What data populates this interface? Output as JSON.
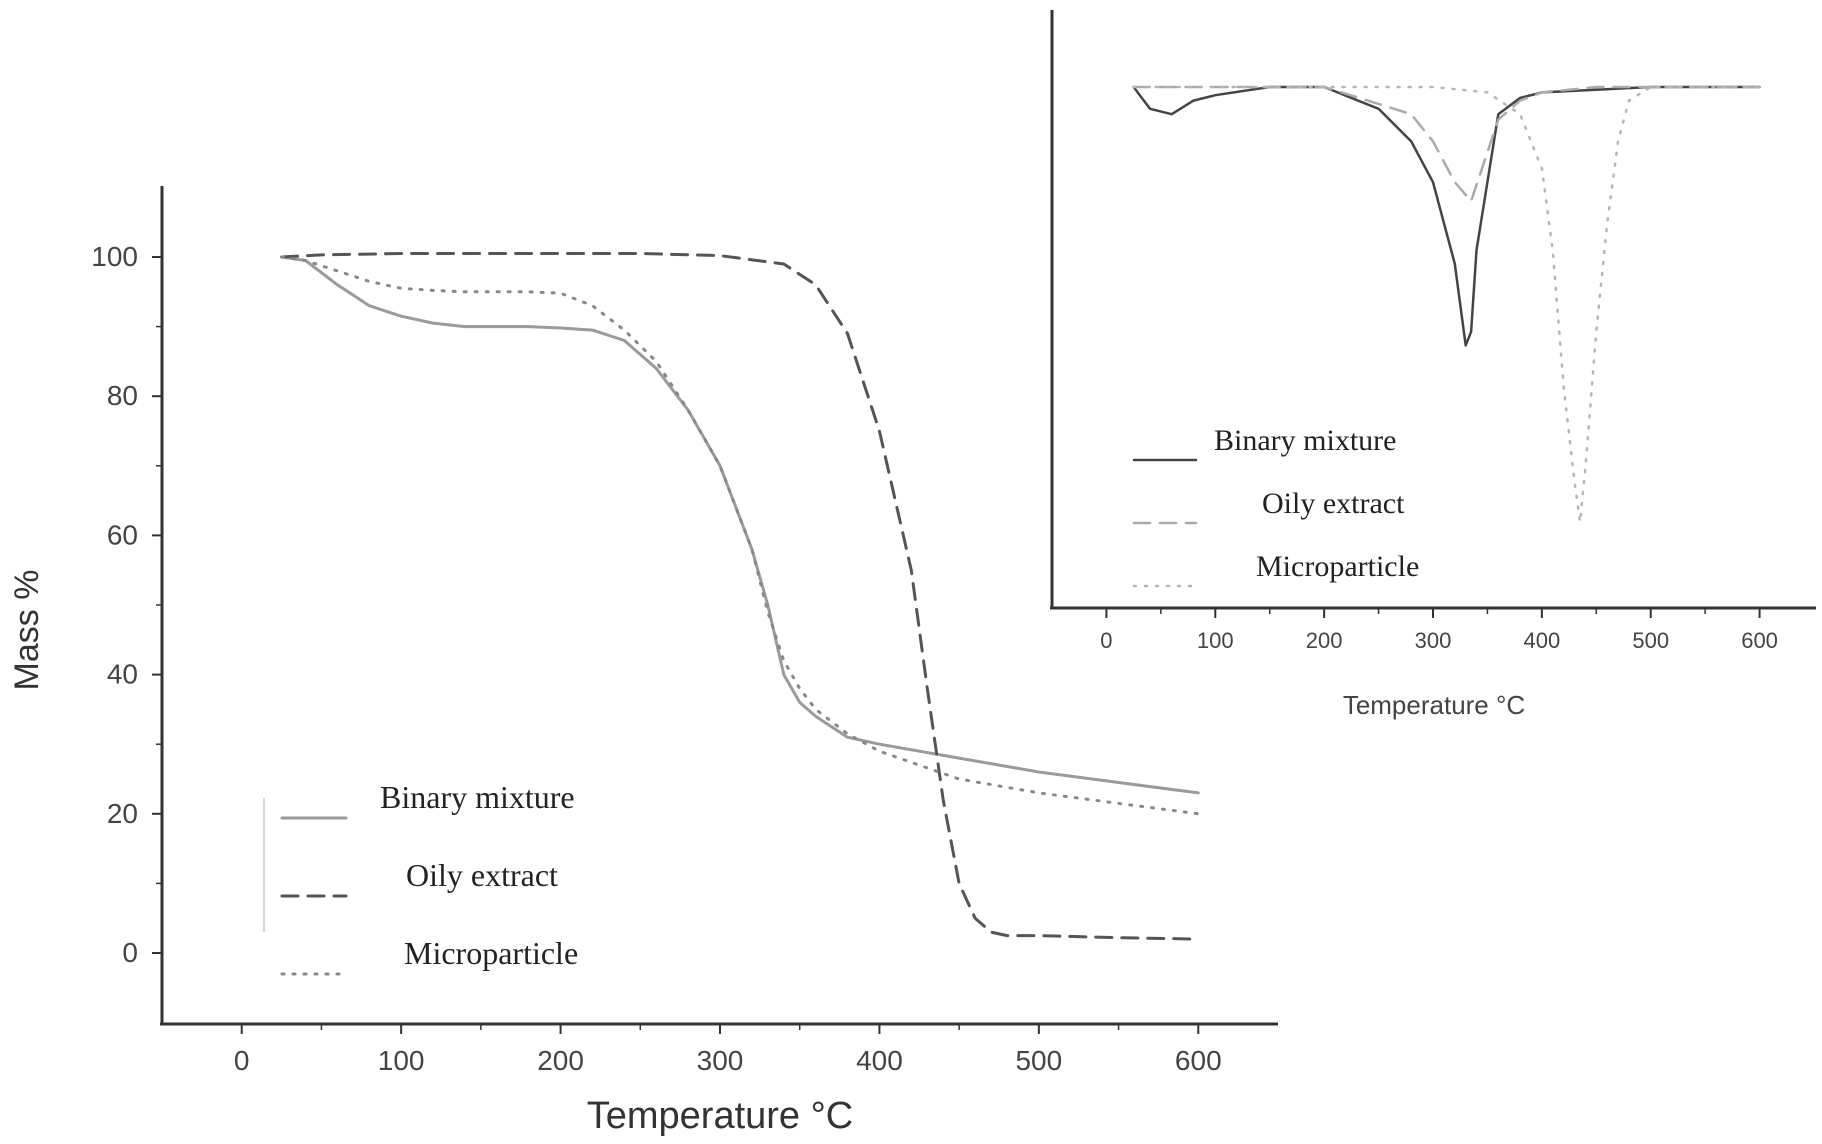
{
  "chart_data": [
    {
      "type": "line",
      "title": "",
      "xlabel": "Temperature °C",
      "ylabel": "Mass %",
      "xlim": [
        -50,
        650
      ],
      "ylim": [
        -10,
        110
      ],
      "xticks": [
        0,
        100,
        200,
        300,
        400,
        500,
        600
      ],
      "yticks": [
        0,
        20,
        40,
        60,
        80,
        100
      ],
      "grid": false,
      "legend_position": "bottom-left",
      "series": [
        {
          "name": "Binary mixture",
          "style": "solid",
          "color": "#9a9a9a",
          "x": [
            25,
            40,
            60,
            80,
            100,
            120,
            140,
            160,
            180,
            200,
            220,
            240,
            260,
            280,
            300,
            320,
            330,
            340,
            350,
            360,
            380,
            400,
            450,
            500,
            550,
            600
          ],
          "y": [
            100,
            99.5,
            96,
            93,
            91.5,
            90.5,
            90,
            90,
            90,
            89.8,
            89.5,
            88,
            84,
            78,
            70,
            58,
            50,
            40,
            36,
            34,
            31,
            30,
            28,
            26,
            24.5,
            23
          ]
        },
        {
          "name": "Oily extract",
          "style": "dashed",
          "color": "#555555",
          "x": [
            25,
            50,
            100,
            150,
            200,
            250,
            300,
            340,
            360,
            380,
            400,
            420,
            430,
            440,
            450,
            460,
            470,
            480,
            500,
            550,
            600
          ],
          "y": [
            100,
            100.3,
            100.5,
            100.5,
            100.5,
            100.5,
            100.2,
            99,
            96,
            89,
            75,
            55,
            38,
            22,
            10,
            5,
            3,
            2.5,
            2.5,
            2.2,
            2
          ]
        },
        {
          "name": "Microparticle",
          "style": "dotted",
          "color": "#888888",
          "x": [
            25,
            40,
            60,
            80,
            100,
            120,
            140,
            160,
            180,
            200,
            220,
            240,
            260,
            280,
            300,
            320,
            330,
            340,
            350,
            360,
            380,
            400,
            450,
            500,
            550,
            600
          ],
          "y": [
            100,
            99.5,
            98,
            96.5,
            95.5,
            95.2,
            95,
            95,
            95,
            94.8,
            93,
            89.5,
            85,
            78,
            70,
            58,
            49,
            42,
            38,
            35,
            31.5,
            29,
            25,
            23,
            21.5,
            20
          ]
        }
      ]
    },
    {
      "type": "line",
      "title": "",
      "xlabel": "Temperature °C",
      "ylabel": "",
      "xlim": [
        -50,
        650
      ],
      "xticks": [
        0,
        100,
        200,
        300,
        400,
        500,
        600
      ],
      "grid": false,
      "legend_position": "bottom-left",
      "series": [
        {
          "name": "Binary mixture",
          "style": "solid",
          "color": "#444444",
          "x": [
            25,
            40,
            60,
            80,
            100,
            150,
            200,
            250,
            280,
            300,
            320,
            330,
            335,
            340,
            350,
            360,
            380,
            400,
            450,
            500,
            550,
            600
          ],
          "y": [
            0,
            -0.08,
            -0.1,
            -0.05,
            -0.03,
            0,
            0,
            -0.08,
            -0.2,
            -0.35,
            -0.65,
            -0.95,
            -0.9,
            -0.6,
            -0.35,
            -0.1,
            -0.04,
            -0.02,
            -0.01,
            0,
            0,
            0
          ]
        },
        {
          "name": "Oily extract",
          "style": "dashed",
          "color": "#aaaaaa",
          "x": [
            25,
            100,
            200,
            280,
            300,
            320,
            335,
            345,
            360,
            380,
            400,
            450,
            500,
            550,
            600
          ],
          "y": [
            0,
            0,
            0,
            -0.1,
            -0.2,
            -0.35,
            -0.42,
            -0.3,
            -0.12,
            -0.05,
            -0.02,
            0,
            0,
            0,
            0
          ]
        },
        {
          "name": "Microparticle",
          "style": "dotted",
          "color": "#b5b5b5",
          "x": [
            25,
            100,
            200,
            300,
            350,
            380,
            400,
            410,
            420,
            430,
            435,
            440,
            450,
            460,
            470,
            480,
            500,
            600
          ],
          "y": [
            0,
            0,
            0,
            0,
            -0.02,
            -0.1,
            -0.3,
            -0.6,
            -1.1,
            -1.45,
            -1.6,
            -1.4,
            -0.9,
            -0.5,
            -0.2,
            -0.05,
            0,
            0
          ]
        }
      ]
    }
  ]
}
